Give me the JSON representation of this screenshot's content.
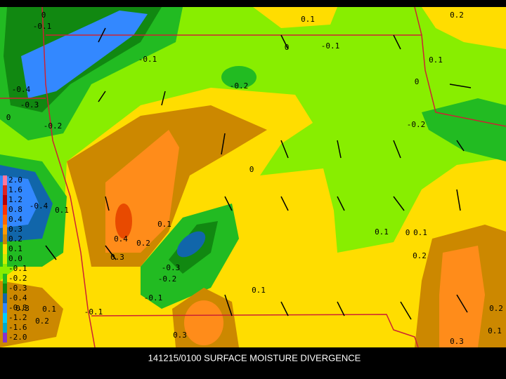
{
  "caption": "141215/0100 SURFACE MOISTURE DIVERGENCE",
  "legend": [
    {
      "label": "2.0",
      "color": "#ff7799"
    },
    {
      "label": "1.6",
      "color": "#dd2222"
    },
    {
      "label": "1.2",
      "color": "#bb0000"
    },
    {
      "label": "0.8",
      "color": "#ff3300"
    },
    {
      "label": "0.4",
      "color": "#ff6600"
    },
    {
      "label": "0.3",
      "color": "#ff9900"
    },
    {
      "label": "0.2",
      "color": "#cc8800"
    },
    {
      "label": "0.1",
      "color": "#ffdd00"
    },
    {
      "label": "0.0",
      "color": "#ccee00"
    },
    {
      "label": "-0.1",
      "color": "#88ee00"
    },
    {
      "label": "-0.2",
      "color": "#22bb22"
    },
    {
      "label": "-0.3",
      "color": "#118811"
    },
    {
      "label": "-0.4",
      "color": "#1166aa"
    },
    {
      "label": "-0.8",
      "color": "#3388ff"
    },
    {
      "label": "-1.2",
      "color": "#00ccff"
    },
    {
      "label": "-1.6",
      "color": "#00aacc"
    },
    {
      "label": "-2.0",
      "color": "#8833cc"
    }
  ],
  "contour_labels": [
    "0",
    "-0.1",
    "0.1",
    "0.2",
    "0",
    "-0.1",
    "-0.1",
    "0.1",
    "-0.2",
    "-0.4",
    "0",
    "-0.3",
    "0",
    "-0.2",
    "-0.2",
    "0",
    "-0.4",
    "0.1",
    "0.1",
    "0.4",
    "0.2",
    "0.1",
    "0",
    "0.1",
    "0.3",
    "-0.3",
    "0.2",
    "-0.2",
    "0.1",
    "-0.1",
    "0.3",
    "0.1",
    "0.2",
    "-0.1",
    "0.2",
    "0.1",
    "0.3",
    "0.3"
  ]
}
